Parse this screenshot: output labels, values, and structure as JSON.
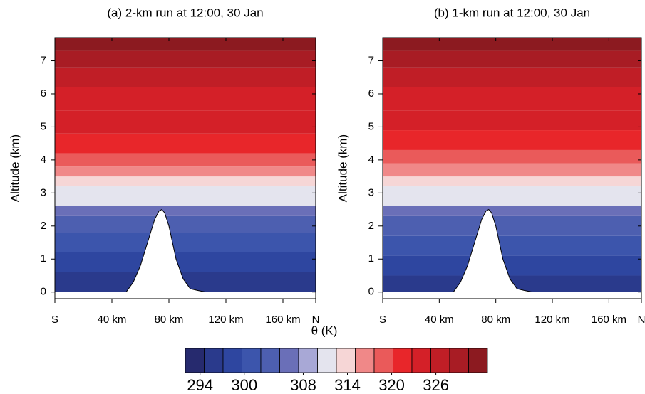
{
  "chart_data": [
    {
      "type": "contour",
      "title": "(a) 2-km run at 12:00, 30 Jan",
      "y_label": "Altitude (km)",
      "xlim": [
        0,
        183
      ],
      "ylim": [
        -0.2,
        7.7
      ],
      "xticks": [
        {
          "value": 0,
          "label": "S"
        },
        {
          "value": 40,
          "label": "40 km"
        },
        {
          "value": 80,
          "label": "80 km"
        },
        {
          "value": 120,
          "label": "120 km"
        },
        {
          "value": 160,
          "label": "160 km"
        },
        {
          "value": 183,
          "label": "N"
        }
      ],
      "yticks": [
        0,
        1,
        2,
        3,
        4,
        5,
        6,
        7
      ],
      "layers": {
        "altitude": [
          0,
          0.6,
          1.2,
          1.8,
          2.3,
          2.6,
          2.9,
          3.2,
          3.5,
          3.8,
          4.2,
          4.8,
          5.5,
          6.2,
          6.8,
          7.3
        ],
        "theta": [
          296,
          298,
          301,
          304,
          307,
          310,
          312,
          315,
          317,
          319,
          321,
          323,
          325,
          327,
          329,
          331
        ]
      },
      "terrain": {
        "x": [
          50,
          55,
          60,
          65,
          70,
          73,
          75,
          77,
          80,
          85,
          90,
          95,
          100,
          106
        ],
        "altitude": [
          0,
          0.3,
          0.8,
          1.5,
          2.2,
          2.45,
          2.5,
          2.4,
          2.0,
          1.0,
          0.4,
          0.1,
          0.05,
          0
        ]
      }
    },
    {
      "type": "contour",
      "title": "(b) 1-km run at 12:00, 30 Jan",
      "y_label": "Altitude (km)",
      "xlim": [
        0,
        183
      ],
      "ylim": [
        -0.2,
        7.7
      ],
      "xticks": [
        {
          "value": 0,
          "label": "S"
        },
        {
          "value": 40,
          "label": "40 km"
        },
        {
          "value": 80,
          "label": "80 km"
        },
        {
          "value": 120,
          "label": "120 km"
        },
        {
          "value": 160,
          "label": "160 km"
        },
        {
          "value": 183,
          "label": "N"
        }
      ],
      "yticks": [
        0,
        1,
        2,
        3,
        4,
        5,
        6,
        7
      ],
      "layers": {
        "altitude": [
          0,
          0.5,
          1.1,
          1.7,
          2.3,
          2.6,
          2.9,
          3.2,
          3.5,
          3.9,
          4.3,
          4.9,
          5.5,
          6.2,
          6.8,
          7.3
        ],
        "theta": [
          295,
          298,
          301,
          304,
          307,
          310,
          312,
          315,
          317,
          319,
          321,
          323,
          325,
          327,
          329,
          331
        ]
      },
      "terrain": {
        "x": [
          50,
          55,
          60,
          65,
          70,
          73,
          75,
          77,
          80,
          85,
          90,
          95,
          100,
          106
        ],
        "altitude": [
          0,
          0.3,
          0.8,
          1.5,
          2.2,
          2.45,
          2.5,
          2.4,
          2.0,
          1.0,
          0.4,
          0.1,
          0.05,
          0
        ]
      }
    }
  ],
  "colorbar": {
    "label": "θ (K)",
    "xlim": [
      292,
      333
    ],
    "xticks": [
      294,
      300,
      308,
      314,
      320,
      326
    ],
    "colors": [
      "#262a6e",
      "#2a3a8c",
      "#2e46a0",
      "#3c55ac",
      "#4d5fb0",
      "#6a6fb8",
      "#a8a8d6",
      "#e4e4ee",
      "#f6d6d6",
      "#f08888",
      "#ea5a5a",
      "#e8262a",
      "#d42028",
      "#c01e26",
      "#a81c24",
      "#8c1a20"
    ]
  }
}
